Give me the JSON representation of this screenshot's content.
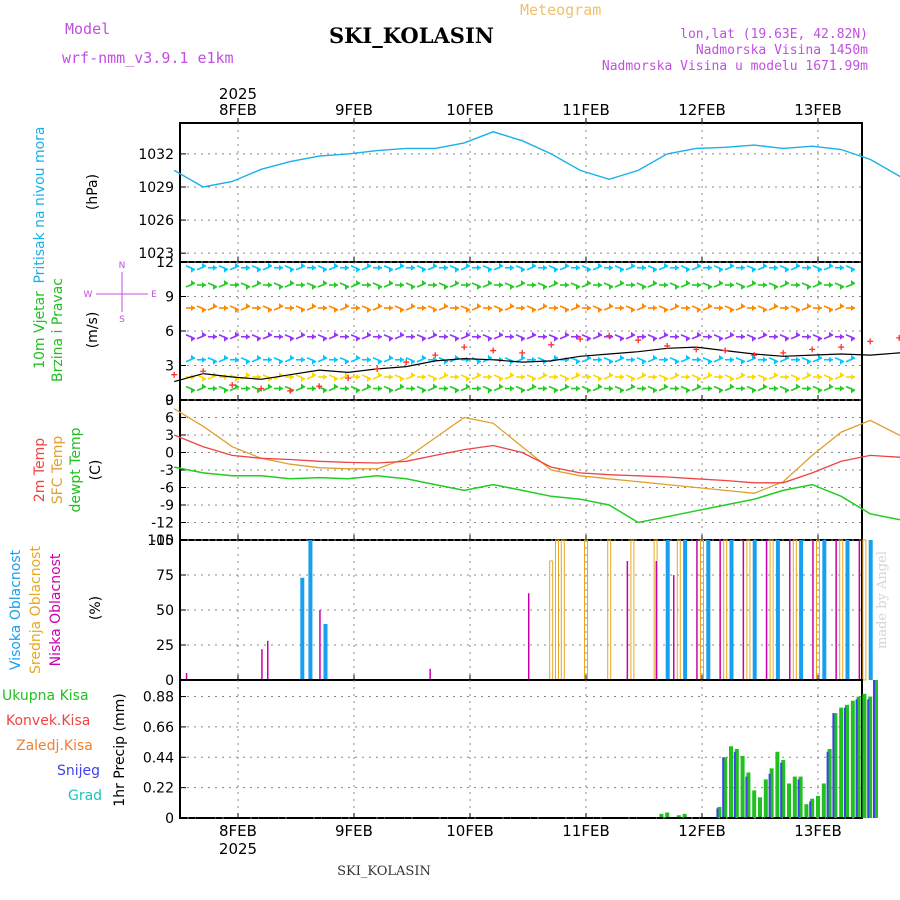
{
  "header": {
    "model_label": "Model",
    "model_name": "wrf-nmm_v3.9.1 e1km",
    "product": "Meteogram",
    "station": "SKI_KOLASIN",
    "coords": "lon,lat (19.63E, 42.82N)",
    "altitude": "Nadmorska Visina 1450m",
    "model_altitude": "Nadmorska Visina u modelu 1671.99m"
  },
  "footer": {
    "station": "SKI_KOLASIN",
    "signature": "made by Angel"
  },
  "colors": {
    "pressure": "#1ab0e8",
    "wind_speed": "#000000",
    "wind_gust": "#ff3030",
    "t2m": "#ee4444",
    "sfc": "#e0a030",
    "dewpt": "#22cc22",
    "high_cloud": "#18a0f0",
    "mid_cloud": "#e8a820",
    "low_cloud": "#cc00aa",
    "total_precip": "#20c020",
    "snow": "#4040ee",
    "grid": "#888888"
  },
  "chart_data": [
    {
      "type": "line",
      "panel": "pressure",
      "ylabel_left": "Pritisak na nivou mora",
      "ylabel_unit": "(hPa)",
      "ylim": [
        1022.2,
        1034.8
      ],
      "yticks": [
        1023,
        1026,
        1029,
        1032
      ],
      "x_labels": [
        "8FEB",
        "9FEB",
        "10FEB",
        "11FEB",
        "12FEB",
        "13FEB"
      ],
      "year_label": "2025",
      "x_start": -0.55,
      "x_step": 0.25,
      "series": [
        {
          "values": [
            1030.5,
            1029.0,
            1029.5,
            1030.6,
            1031.3,
            1031.8,
            1032.0,
            1032.3,
            1032.5,
            1032.5,
            1033.0,
            1034.0,
            1033.2,
            1032.0,
            1030.5,
            1029.7,
            1030.5,
            1032.0,
            1032.5,
            1032.6,
            1032.8,
            1032.5,
            1032.7,
            1032.4,
            1031.5,
            1030.0,
            1028.5,
            1027.8,
            1028.2,
            1029.5,
            1030.2,
            1030.5,
            1030.3,
            1030.0,
            1029.2,
            1028.0,
            1026.8,
            1026.0,
            1025.3,
            1025.0,
            1027.0,
            1027.8,
            1027.5,
            1026.7,
            1027.3,
            1027.0,
            1026.0,
            1025.2,
            1025.3,
            1025.6,
            1026.3,
            1027.0,
            1027.8,
            1028.4,
            1027.9,
            1027.0,
            1027.5,
            1026.8,
            1026.0,
            1026.8,
            1027.2,
            1026.6,
            1025.8,
            1025.4,
            1025.0,
            1024.6,
            1024.0,
            1023.8,
            1023.5,
            1023.4,
            1023.0,
            1022.8
          ]
        }
      ]
    },
    {
      "type": "line",
      "panel": "wind",
      "ylabel_left": "10m Vjetar",
      "ylabel_left2": "Brzina i Pravac",
      "ylabel_unit": "(m/s)",
      "compass": "N S W E",
      "ylim": [
        0,
        12
      ],
      "yticks": [
        0,
        3,
        6,
        9,
        12
      ],
      "x_start": -0.55,
      "x_step": 0.25,
      "arrow_rows": [
        1,
        2,
        3.5,
        5.5,
        8,
        10,
        11.5
      ],
      "arrow_colors": [
        "#22cc22",
        "#ffd700",
        "#00c8ff",
        "#9933ff",
        "#ff8800",
        "#22cc22",
        "#00c8ff"
      ],
      "series": [
        {
          "name": "speed",
          "values": [
            1.6,
            2.3,
            2.0,
            1.8,
            2.2,
            2.6,
            2.4,
            2.7,
            2.9,
            3.4,
            3.6,
            3.5,
            3.3,
            3.4,
            3.8,
            4.0,
            4.2,
            4.5,
            4.6,
            4.3,
            4.0,
            3.8,
            3.9,
            4.0,
            3.9,
            4.1,
            4.2,
            4.3,
            4.1,
            4.0,
            3.6,
            3.3,
            3.0,
            2.8,
            2.3,
            1.8,
            1.5,
            1.7,
            2.4,
            3.0,
            2.7,
            2.1,
            1.8,
            1.2,
            1.1,
            1.4,
            1.9,
            2.2,
            2.0,
            1.7,
            1.5,
            1.6,
            2.0,
            2.3,
            2.7,
            3.1,
            2.9,
            2.5,
            2.2,
            2.6,
            3.7,
            4.5,
            4.8,
            4.4,
            3.9,
            3.1,
            2.0,
            2.5,
            3.0,
            3.2,
            3.6,
            4.7
          ]
        },
        {
          "name": "gust",
          "values": [
            2.2,
            2.5,
            1.3,
            1.0,
            0.8,
            1.2,
            1.9,
            2.7,
            3.3,
            3.9,
            4.6,
            4.3,
            4.1,
            4.8,
            5.3,
            5.6,
            5.2,
            4.7,
            4.4,
            4.3,
            3.9,
            4.1,
            4.4,
            4.6,
            5.1,
            5.4,
            4.5,
            4.9,
            5.8,
            4.6,
            4.1,
            3.7,
            3.3,
            3.1,
            2.9,
            1.5,
            1.1,
            1.3,
            2.2,
            3.2,
            2.8,
            2.0,
            1.4,
            1.2,
            1.5,
            1.9,
            2.6,
            3.1,
            2.7,
            2.1,
            1.9,
            2.3,
            2.9,
            3.5,
            4.2,
            5.6,
            6.2,
            5.4,
            4.9,
            6.1,
            7.6,
            8.2,
            7.5,
            6.3,
            5.2,
            3.9,
            2.6,
            3.4,
            4.0,
            4.5,
            5.9,
            11.5
          ]
        }
      ]
    },
    {
      "type": "line",
      "panel": "temperature",
      "ylabel_left": "2m Temp",
      "ylabel_left2": "SFC Temp",
      "ylabel_left3": "dewpt Temp",
      "ylabel_unit": "(C)",
      "ylim": [
        -15,
        9
      ],
      "yticks": [
        -15,
        -12,
        -9,
        -6,
        -3,
        0,
        3,
        6,
        9
      ],
      "x_start": -0.55,
      "x_step": 0.25,
      "series": [
        {
          "name": "2m",
          "values": [
            3.0,
            1.0,
            -0.5,
            -1.0,
            -1.2,
            -1.5,
            -1.7,
            -1.8,
            -1.5,
            -0.5,
            0.5,
            1.2,
            0.0,
            -2.5,
            -3.5,
            -3.8,
            -4.0,
            -4.2,
            -4.5,
            -4.8,
            -5.2,
            -5.2,
            -3.5,
            -1.5,
            -0.5,
            -0.8,
            -2.0,
            -3.5,
            -4.5,
            -5.0,
            -5.3,
            -5.5,
            -5.8,
            -5.5,
            -3.0,
            -1.0,
            0.0,
            -0.8,
            -2.0,
            -3.0,
            -3.5,
            -3.8,
            -3.7,
            -3.5,
            -3.4,
            -3.2,
            -2.5,
            -0.5,
            1.5,
            1.5,
            0.5,
            -0.5,
            -1.5,
            -2.0,
            -1.7,
            -1.0,
            0.5,
            1.5,
            1.2,
            0.0,
            -0.5,
            -1.0,
            -1.2,
            -1.4,
            -1.3,
            -1.0,
            -0.5,
            -0.8,
            -1.0,
            0.0,
            0.8,
            1.5
          ]
        },
        {
          "name": "sfc",
          "values": [
            7.5,
            4.5,
            1.0,
            -1.0,
            -2.0,
            -2.6,
            -2.8,
            -2.8,
            -1.0,
            2.5,
            6.0,
            5.0,
            1.0,
            -3.0,
            -4.0,
            -4.5,
            -5.0,
            -5.5,
            -6.0,
            -6.5,
            -7.0,
            -5.0,
            -0.5,
            3.5,
            5.5,
            3.0,
            -1.0,
            -4.0,
            -5.5,
            -6.5,
            -7.0,
            -7.0,
            -7.5,
            -5.0,
            -0.5,
            4.0,
            5.0,
            3.0,
            -1.0,
            -4.0,
            -4.5,
            -4.5,
            -4.0,
            -3.5,
            -3.5,
            -3.5,
            0.0,
            4.5,
            6.0,
            3.5,
            -0.5,
            -3.0,
            -3.5,
            -3.0,
            -2.0,
            2.0,
            6.0,
            5.0,
            2.5,
            -0.5,
            -1.5,
            -2.0,
            -2.3,
            -2.5,
            -2.3,
            -1.8,
            -1.2,
            -1.5,
            -0.5,
            4.0,
            6.0,
            4.0
          ]
        },
        {
          "name": "dewpt",
          "values": [
            -2.5,
            -3.5,
            -4.0,
            -4.0,
            -4.5,
            -4.3,
            -4.5,
            -4.0,
            -4.5,
            -5.5,
            -6.5,
            -5.5,
            -6.5,
            -7.5,
            -8.0,
            -9.0,
            -12.0,
            -11.0,
            -10.0,
            -9.0,
            -8.0,
            -6.5,
            -5.5,
            -7.5,
            -10.5,
            -11.5,
            -10.0,
            -9.5,
            -9.5,
            -11.5,
            -13.5,
            -12.5,
            -10.5,
            -8.5,
            -5.0,
            -8.0,
            -11.5,
            -10.5,
            -11.5,
            -9.5,
            -9.0,
            -11.5,
            -12.0,
            -9.5,
            -6.5,
            -4.5,
            -6.0,
            -8.5,
            -9.5,
            -9.0,
            -7.5,
            -6.0,
            -5.5,
            -7.0,
            -9.5,
            -7.5,
            -5.0,
            -4.5,
            -4.5,
            -4.0,
            -3.8,
            -3.6,
            -3.5,
            -3.2,
            -3.0,
            -2.8,
            -2.5,
            -2.5,
            -2.3,
            -1.0,
            0.0,
            0.0
          ]
        }
      ]
    },
    {
      "type": "bar",
      "panel": "cloud_cover",
      "ylabel_left": "Visoka Oblacnost",
      "ylabel_left2": "Srednja Oblacnost",
      "ylabel_left3": "Niska Oblacnost",
      "ylabel_unit": "(%)",
      "ylim": [
        0,
        100
      ],
      "yticks": [
        0,
        25,
        50,
        75,
        100
      ],
      "high": [
        [
          8.4,
          0
        ],
        [
          8.55,
          73
        ],
        [
          8.62,
          100
        ],
        [
          8.75,
          40
        ],
        [
          11.7,
          100
        ],
        [
          11.85,
          100
        ],
        [
          12.05,
          100
        ],
        [
          12.25,
          100
        ],
        [
          12.45,
          100
        ],
        [
          12.65,
          100
        ],
        [
          12.85,
          100
        ],
        [
          13.05,
          100
        ],
        [
          13.25,
          100
        ],
        [
          13.45,
          100
        ]
      ],
      "mid": [
        [
          10.7,
          85
        ],
        [
          10.75,
          100
        ],
        [
          10.8,
          100
        ],
        [
          11.0,
          100
        ],
        [
          11.2,
          100
        ],
        [
          11.4,
          100
        ],
        [
          11.6,
          100
        ],
        [
          11.8,
          100
        ],
        [
          12.0,
          100
        ],
        [
          12.2,
          100
        ],
        [
          12.4,
          100
        ],
        [
          12.6,
          100
        ],
        [
          12.8,
          100
        ],
        [
          13.0,
          100
        ],
        [
          13.2,
          100
        ],
        [
          13.4,
          100
        ]
      ],
      "low": [
        [
          7.55,
          5
        ],
        [
          8.2,
          22
        ],
        [
          8.25,
          28
        ],
        [
          8.7,
          50
        ],
        [
          9.65,
          8
        ],
        [
          10.5,
          62
        ],
        [
          11.35,
          85
        ],
        [
          11.6,
          85
        ],
        [
          11.75,
          75
        ],
        [
          11.95,
          100
        ],
        [
          12.15,
          100
        ],
        [
          12.35,
          100
        ],
        [
          12.55,
          100
        ],
        [
          12.75,
          100
        ],
        [
          12.95,
          100
        ],
        [
          13.15,
          100
        ],
        [
          13.35,
          100
        ]
      ]
    },
    {
      "type": "bar",
      "panel": "precipitation",
      "legend": [
        "Ukupna Kisa",
        "Konvek.Kisa",
        "Zaledj.Kisa",
        "Snijeg",
        "Grad"
      ],
      "legend_colors": [
        "#20c020",
        "#ee4444",
        "#f08030",
        "#4040ee",
        "#20c0c0"
      ],
      "ylabel_unit": "1hr Precip (mm)",
      "ylim": [
        0,
        1.0
      ],
      "yticks": [
        0,
        0.22,
        0.44,
        0.66,
        0.88
      ],
      "x_labels": [
        "8FEB",
        "9FEB",
        "10FEB",
        "11FEB",
        "12FEB",
        "13FEB"
      ],
      "year_label": "2025",
      "total": [
        [
          11.65,
          0.03
        ],
        [
          11.7,
          0.04
        ],
        [
          11.8,
          0.02
        ],
        [
          11.85,
          0.03
        ],
        [
          12.15,
          0.08
        ],
        [
          12.2,
          0.44
        ],
        [
          12.25,
          0.52
        ],
        [
          12.3,
          0.5
        ],
        [
          12.35,
          0.45
        ],
        [
          12.4,
          0.33
        ],
        [
          12.45,
          0.2
        ],
        [
          12.5,
          0.15
        ],
        [
          12.55,
          0.28
        ],
        [
          12.6,
          0.36
        ],
        [
          12.65,
          0.48
        ],
        [
          12.7,
          0.42
        ],
        [
          12.75,
          0.25
        ],
        [
          12.8,
          0.3
        ],
        [
          12.85,
          0.3
        ],
        [
          12.9,
          0.1
        ],
        [
          12.95,
          0.14
        ],
        [
          13.0,
          0.16
        ],
        [
          13.05,
          0.25
        ],
        [
          13.1,
          0.5
        ],
        [
          13.15,
          0.76
        ],
        [
          13.2,
          0.8
        ],
        [
          13.25,
          0.82
        ],
        [
          13.3,
          0.85
        ],
        [
          13.35,
          0.88
        ],
        [
          13.4,
          0.9
        ],
        [
          13.45,
          0.88
        ],
        [
          13.5,
          1.0
        ]
      ],
      "snow": [
        [
          12.15,
          0.07
        ],
        [
          12.2,
          0.44
        ],
        [
          12.3,
          0.48
        ],
        [
          12.4,
          0.3
        ],
        [
          12.6,
          0.32
        ],
        [
          12.7,
          0.4
        ],
        [
          12.85,
          0.28
        ],
        [
          12.95,
          0.12
        ],
        [
          13.1,
          0.48
        ],
        [
          13.15,
          0.76
        ],
        [
          13.25,
          0.8
        ],
        [
          13.35,
          0.86
        ],
        [
          13.45,
          0.86
        ],
        [
          13.5,
          1.0
        ]
      ]
    }
  ]
}
